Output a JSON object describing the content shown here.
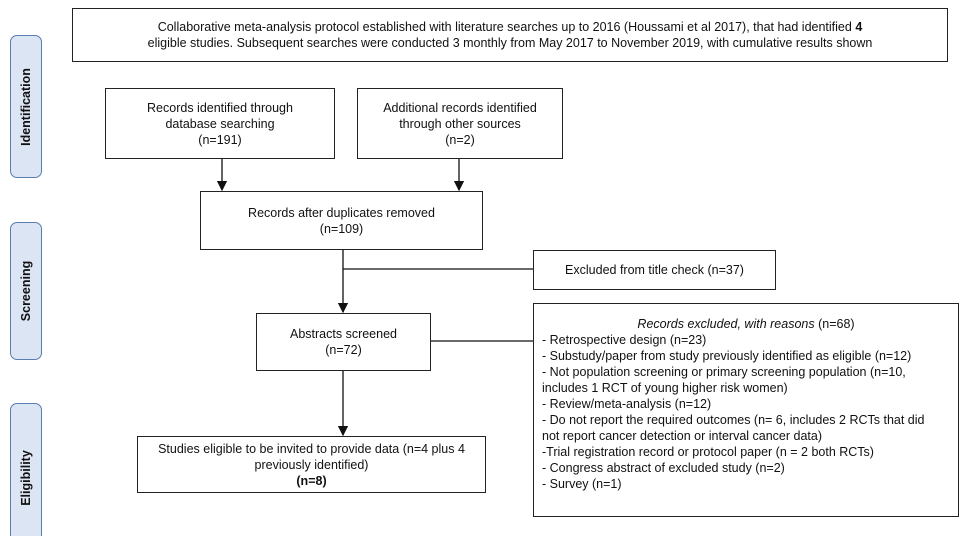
{
  "header": {
    "line1": "Collaborative meta-analysis protocol established with literature searches up to 2016 (Houssami et al 2017), that had identified",
    "line1_bold": "4",
    "line2": "eligible studies. Subsequent searches were conducted 3 monthly from May 2017 to November 2019, with cumulative results shown"
  },
  "phases": [
    "Identification",
    "Screening",
    "Eligibility"
  ],
  "boxes": {
    "database": [
      "Records identified through",
      "database searching",
      "(n=191)"
    ],
    "other": [
      "Additional records identified",
      "through other sources",
      "(n=2)"
    ],
    "duplicates": [
      "Records after duplicates removed",
      "(n=109)"
    ],
    "title_check": "Excluded from title check (n=37)",
    "abstracts": [
      "Abstracts screened",
      "(n=72)"
    ],
    "exclusions": {
      "title": "Records excluded, with reasons",
      "count": "(n=68)",
      "lines": [
        "- Retrospective design (n=23)",
        "- Substudy/paper from study previously identified as eligible (n=12)",
        "- Not population screening or primary screening population (n=10,",
        "includes 1 RCT of young higher risk women)",
        "- Review/meta-analysis (n=12)",
        "- Do not report the required outcomes (n= 6, includes 2 RCTs that did",
        "not report cancer detection or interval cancer data)",
        "-Trial registration record or protocol paper (n = 2 both RCTs)",
        "- Congress abstract of excluded study (n=2)",
        "- Survey (n=1)"
      ]
    },
    "eligible": [
      "Studies eligible to be invited to provide data (n=4 plus 4",
      "previously identified)",
      "(n=8)"
    ]
  }
}
